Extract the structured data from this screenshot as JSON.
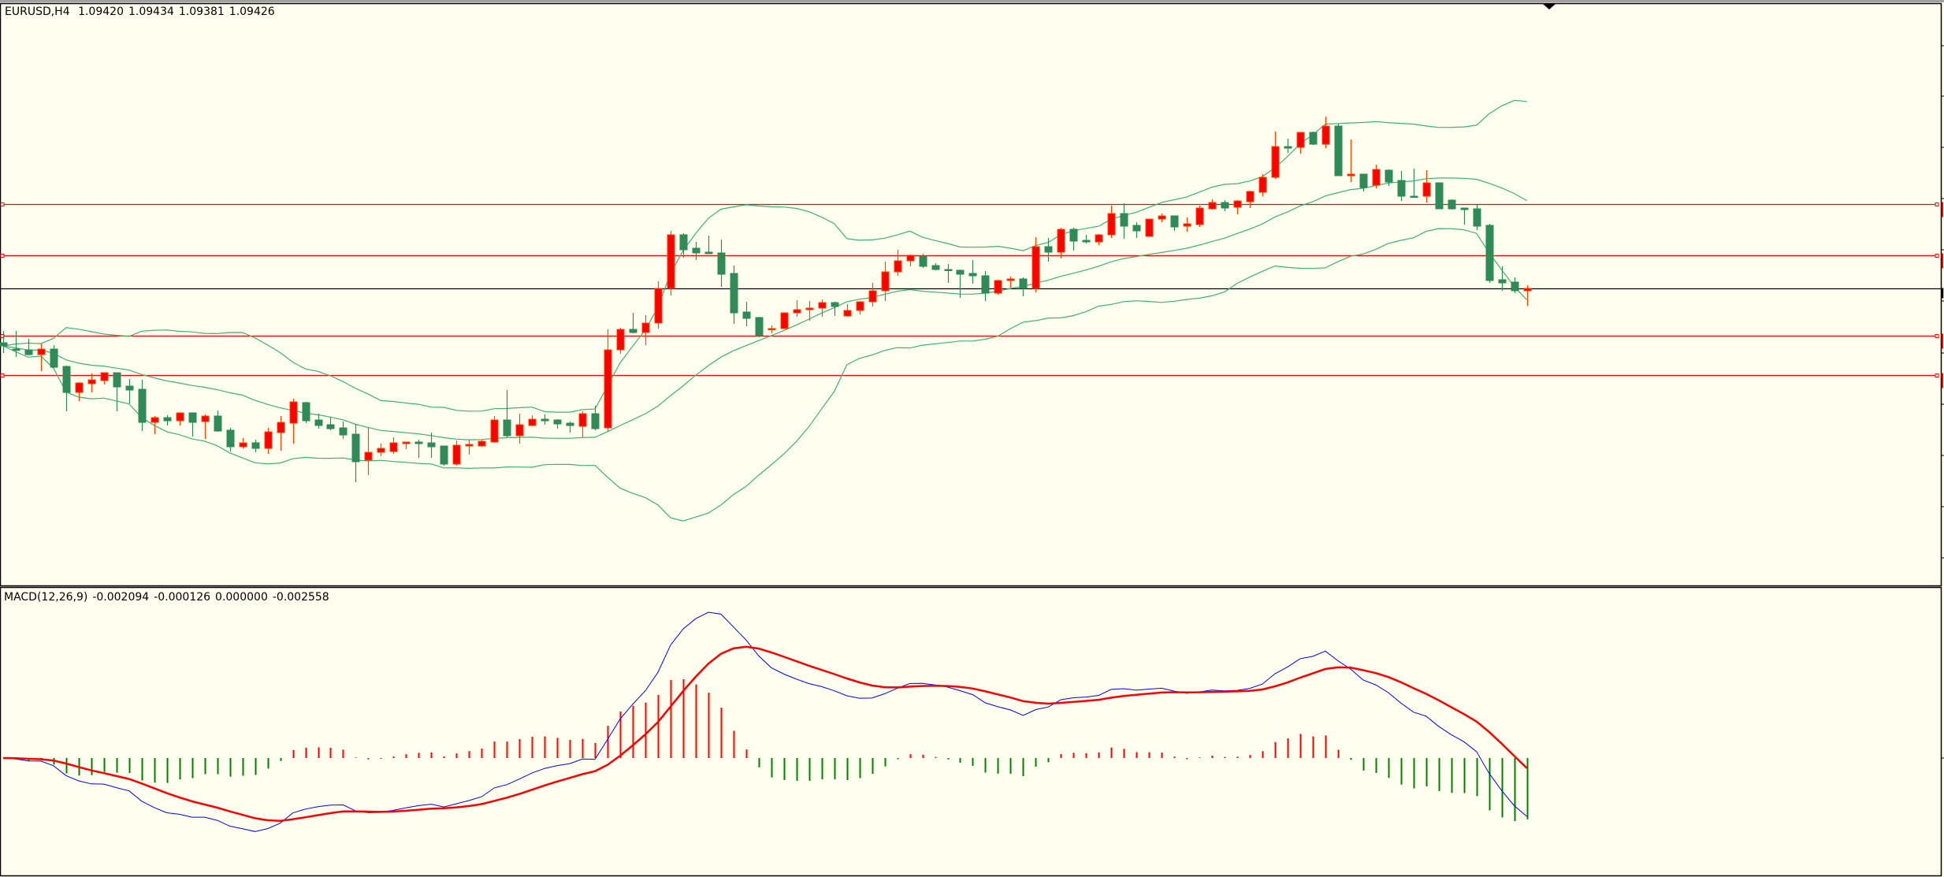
{
  "header": {
    "symbol": "EURUSD,H4",
    "open": "1.09420",
    "high": "1.09434",
    "low": "1.09381",
    "close": "1.09426"
  },
  "macd_legend": {
    "name": "MACD(12,26,9)",
    "v1": "-0.002094",
    "v2": "-0.000126",
    "v3": "0.000000",
    "v4": "-0.002558"
  },
  "colors": {
    "background": "#FFFFF0",
    "bull_body": "#FF0000",
    "bull_border": "#FF4500",
    "bear_body": "#2E8B57",
    "bands": "#3CB371",
    "level_line": "#FF0000",
    "price_line": "#000000",
    "macd_line": "#0000FF",
    "signal_line": "#FF0000",
    "hist_pos": "#FF0000",
    "hist_neg": "#008000"
  },
  "chart_data": {
    "type": "candlestick",
    "symbol": "EURUSD",
    "timeframe": "H4",
    "ylim": [
      1.08678,
      1.10128
    ],
    "current_price": 1.09426,
    "horizontal_levels": [
      1.0964,
      1.0951,
      1.09306,
      1.09206
    ],
    "indicators": {
      "bollinger": {
        "period": 20,
        "deviation": 2
      },
      "macd": {
        "fast": 12,
        "slow": 26,
        "signal": 9
      }
    },
    "ohlc": [
      [
        1.09288,
        1.09318,
        1.09262,
        1.0928
      ],
      [
        1.09272,
        1.09318,
        1.09252,
        1.0927
      ],
      [
        1.0927,
        1.09298,
        1.09256,
        1.09258
      ],
      [
        1.09258,
        1.09286,
        1.09216,
        1.09272
      ],
      [
        1.09272,
        1.09282,
        1.09224,
        1.09226
      ],
      [
        1.09228,
        1.0923,
        1.09114,
        1.09162
      ],
      [
        1.09162,
        1.09188,
        1.0914,
        1.09186
      ],
      [
        1.09184,
        1.0921,
        1.09162,
        1.09194
      ],
      [
        1.09192,
        1.09212,
        1.09182,
        1.09212
      ],
      [
        1.09212,
        1.09212,
        1.09114,
        1.09176
      ],
      [
        1.09178,
        1.09196,
        1.09134,
        1.09168
      ],
      [
        1.0917,
        1.09194,
        1.09064,
        1.09086
      ],
      [
        1.09086,
        1.09102,
        1.09056,
        1.09098
      ],
      [
        1.09098,
        1.09104,
        1.09078,
        1.0909
      ],
      [
        1.0909,
        1.09112,
        1.09078,
        1.0911
      ],
      [
        1.0911,
        1.0911,
        1.0905,
        1.09086
      ],
      [
        1.09088,
        1.09106,
        1.09044,
        1.09102
      ],
      [
        1.09102,
        1.09116,
        1.09062,
        1.09064
      ],
      [
        1.09066,
        1.09072,
        1.09012,
        1.09024
      ],
      [
        1.09024,
        1.09046,
        1.0902,
        1.09034
      ],
      [
        1.09034,
        1.09042,
        1.0901,
        1.0902
      ],
      [
        1.0902,
        1.09072,
        1.09006,
        1.09062
      ],
      [
        1.0906,
        1.09102,
        1.09014,
        1.09086
      ],
      [
        1.09084,
        1.09146,
        1.09032,
        1.09138
      ],
      [
        1.09136,
        1.09138,
        1.09084,
        1.0909
      ],
      [
        1.09092,
        1.09108,
        1.0907,
        1.09078
      ],
      [
        1.0908,
        1.091,
        1.09066,
        1.0907
      ],
      [
        1.09072,
        1.09088,
        1.09044,
        1.09054
      ],
      [
        1.09056,
        1.09082,
        1.08934,
        1.08986
      ],
      [
        1.0899,
        1.09074,
        1.08952,
        1.0901
      ],
      [
        1.0901,
        1.09032,
        1.09,
        1.0902
      ],
      [
        1.09012,
        1.09048,
        1.09006,
        1.09034
      ],
      [
        1.09032,
        1.09036,
        1.09018,
        1.09036
      ],
      [
        1.09036,
        1.09042,
        1.08996,
        1.09032
      ],
      [
        1.09034,
        1.0906,
        1.08996,
        1.09024
      ],
      [
        1.09026,
        1.09026,
        1.08976,
        1.0898
      ],
      [
        1.0898,
        1.0904,
        1.08976,
        1.09028
      ],
      [
        1.09026,
        1.09042,
        1.09004,
        1.0903
      ],
      [
        1.09026,
        1.09042,
        1.09024,
        1.09038
      ],
      [
        1.09036,
        1.09102,
        1.09034,
        1.09092
      ],
      [
        1.09092,
        1.09168,
        1.09048,
        1.09052
      ],
      [
        1.09052,
        1.09108,
        1.09032,
        1.0908
      ],
      [
        1.09078,
        1.09104,
        1.09076,
        1.09094
      ],
      [
        1.09094,
        1.09106,
        1.0908,
        1.0909
      ],
      [
        1.09092,
        1.09094,
        1.0907,
        1.09082
      ],
      [
        1.09084,
        1.09088,
        1.0906,
        1.09078
      ],
      [
        1.09076,
        1.09114,
        1.09048,
        1.09108
      ],
      [
        1.09108,
        1.09128,
        1.09066,
        1.0907
      ],
      [
        1.09072,
        1.09322,
        1.09062,
        1.0927
      ],
      [
        1.0927,
        1.09326,
        1.0926,
        1.09322
      ],
      [
        1.09322,
        1.09364,
        1.09312,
        1.09314
      ],
      [
        1.09314,
        1.09358,
        1.09282,
        1.09338
      ],
      [
        1.09338,
        1.09444,
        1.09324,
        1.09426
      ],
      [
        1.09426,
        1.09572,
        1.09408,
        1.09562
      ],
      [
        1.09562,
        1.09566,
        1.09504,
        1.09524
      ],
      [
        1.09528,
        1.09544,
        1.09498,
        1.09516
      ],
      [
        1.09518,
        1.0956,
        1.09514,
        1.09514
      ],
      [
        1.09516,
        1.0955,
        1.0943,
        1.09462
      ],
      [
        1.09464,
        1.09484,
        1.09336,
        1.09364
      ],
      [
        1.09366,
        1.09392,
        1.0933,
        1.0935
      ],
      [
        1.09352,
        1.09354,
        1.09302,
        1.09306
      ],
      [
        1.09322,
        1.09332,
        1.09312,
        1.09324
      ],
      [
        1.09324,
        1.09364,
        1.09324,
        1.09364
      ],
      [
        1.09364,
        1.09396,
        1.09354,
        1.09372
      ],
      [
        1.09372,
        1.09394,
        1.09344,
        1.09376
      ],
      [
        1.09376,
        1.09398,
        1.09354,
        1.0939
      ],
      [
        1.0939,
        1.09392,
        1.09356,
        1.0938
      ],
      [
        1.09356,
        1.09386,
        1.09354,
        1.0937
      ],
      [
        1.0937,
        1.09394,
        1.0936,
        1.09392
      ],
      [
        1.09392,
        1.0944,
        1.0938,
        1.0942
      ],
      [
        1.0942,
        1.09494,
        1.09394,
        1.09468
      ],
      [
        1.09468,
        1.09524,
        1.09458,
        1.09496
      ],
      [
        1.09496,
        1.09512,
        1.09482,
        1.0951
      ],
      [
        1.09508,
        1.09514,
        1.09478,
        1.09482
      ],
      [
        1.09484,
        1.0949,
        1.09472,
        1.09474
      ],
      [
        1.09474,
        1.09488,
        1.0944,
        1.09472
      ],
      [
        1.09472,
        1.09474,
        1.09402,
        1.09462
      ],
      [
        1.09464,
        1.09498,
        1.09438,
        1.09458
      ],
      [
        1.09458,
        1.0947,
        1.09394,
        1.09414
      ],
      [
        1.09414,
        1.09448,
        1.0941,
        1.09446
      ],
      [
        1.09446,
        1.09456,
        1.09428,
        1.0945
      ],
      [
        1.0945,
        1.09454,
        1.09406,
        1.09426
      ],
      [
        1.09426,
        1.09556,
        1.09416,
        1.09532
      ],
      [
        1.09532,
        1.09554,
        1.09494,
        1.09518
      ],
      [
        1.09518,
        1.0958,
        1.09502,
        1.09576
      ],
      [
        1.09576,
        1.0958,
        1.09522,
        1.09546
      ],
      [
        1.09548,
        1.09562,
        1.0954,
        1.09544
      ],
      [
        1.09544,
        1.09564,
        1.09536,
        1.09562
      ],
      [
        1.09562,
        1.09636,
        1.09554,
        1.09616
      ],
      [
        1.09616,
        1.09642,
        1.09552,
        1.09584
      ],
      [
        1.09586,
        1.09594,
        1.09554,
        1.09572
      ],
      [
        1.09558,
        1.09602,
        1.09558,
        1.09602
      ],
      [
        1.09602,
        1.09616,
        1.09594,
        1.0961
      ],
      [
        1.0961,
        1.0961,
        1.09572,
        1.09582
      ],
      [
        1.09584,
        1.09606,
        1.0957,
        1.0959
      ],
      [
        1.09588,
        1.09636,
        1.09582,
        1.0963
      ],
      [
        1.09628,
        1.09652,
        1.09626,
        1.09644
      ],
      [
        1.09644,
        1.0965,
        1.09622,
        1.0963
      ],
      [
        1.09632,
        1.0965,
        1.09614,
        1.09648
      ],
      [
        1.09646,
        1.09674,
        1.0963,
        1.09672
      ],
      [
        1.0967,
        1.09716,
        1.0966,
        1.09708
      ],
      [
        1.09708,
        1.09824,
        1.09704,
        1.09786
      ],
      [
        1.09786,
        1.09806,
        1.0977,
        1.09782
      ],
      [
        1.09784,
        1.09822,
        1.09768,
        1.09822
      ],
      [
        1.09822,
        1.09824,
        1.0979,
        1.09792
      ],
      [
        1.09792,
        1.09862,
        1.09782,
        1.09838
      ],
      [
        1.09838,
        1.09844,
        1.09712,
        1.09712
      ],
      [
        1.09712,
        1.09804,
        1.09696,
        1.09716
      ],
      [
        1.09716,
        1.09716,
        1.09672,
        1.09682
      ],
      [
        1.09688,
        1.0974,
        1.0968,
        1.09728
      ],
      [
        1.09726,
        1.09728,
        1.09686,
        1.09696
      ],
      [
        1.097,
        1.09724,
        1.09648,
        1.0966
      ],
      [
        1.0966,
        1.0973,
        1.09656,
        1.09658
      ],
      [
        1.0966,
        1.09726,
        1.09644,
        1.09694
      ],
      [
        1.09694,
        1.09694,
        1.09628,
        1.09628
      ],
      [
        1.0965,
        1.09652,
        1.09626,
        1.09628
      ],
      [
        1.0963,
        1.0963,
        1.09588,
        1.09626
      ],
      [
        1.09628,
        1.09638,
        1.09574,
        1.09584
      ],
      [
        1.09586,
        1.0959,
        1.0944,
        1.09446
      ],
      [
        1.09448,
        1.09482,
        1.0942,
        1.0944
      ],
      [
        1.09442,
        1.09454,
        1.09414,
        1.0942
      ],
      [
        1.0942,
        1.09434,
        1.09381,
        1.09426
      ]
    ]
  }
}
